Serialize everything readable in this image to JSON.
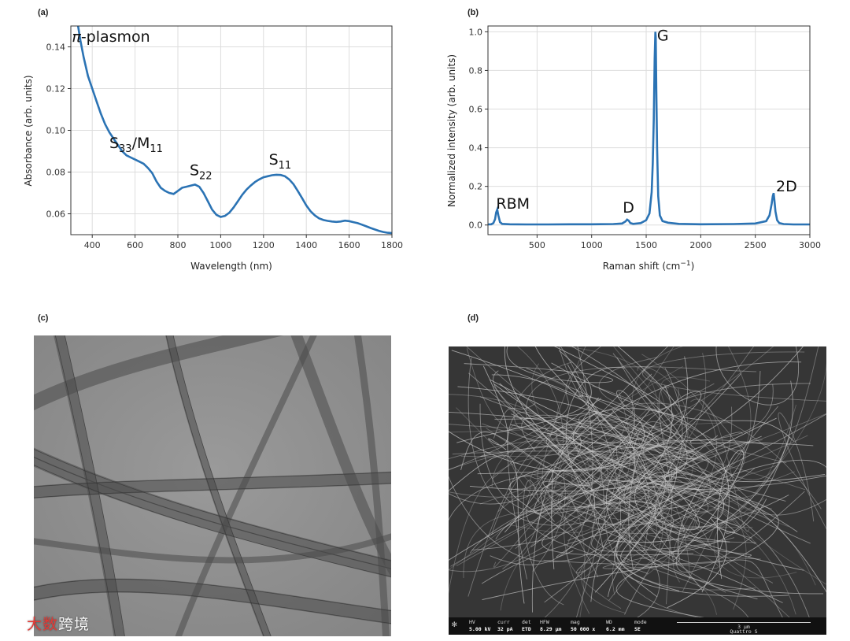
{
  "chart_data": [
    {
      "panel": "(a)",
      "type": "line",
      "xlabel": "Wavelength (nm)",
      "ylabel": "Absorbance (arb. units)",
      "xlim": [
        300,
        1800
      ],
      "ylim": [
        0.05,
        0.15
      ],
      "xticks": [
        400,
        600,
        800,
        1000,
        1200,
        1400,
        1600,
        1800
      ],
      "yticks": [
        0.06,
        0.08,
        0.1,
        0.12,
        0.14
      ],
      "grid": true,
      "color": "#2b73b4",
      "series": [
        {
          "x": [
            334,
            345,
            360,
            380,
            400,
            420,
            440,
            460,
            480,
            500,
            520,
            540,
            560,
            580,
            600,
            620,
            640,
            660,
            680,
            700,
            720,
            740,
            760,
            780,
            800,
            820,
            840,
            860,
            880,
            900,
            920,
            940,
            960,
            980,
            1000,
            1020,
            1040,
            1060,
            1080,
            1100,
            1120,
            1140,
            1160,
            1180,
            1200,
            1220,
            1240,
            1260,
            1280,
            1300,
            1320,
            1340,
            1360,
            1380,
            1400,
            1420,
            1440,
            1460,
            1480,
            1500,
            1520,
            1540,
            1560,
            1580,
            1600,
            1620,
            1640,
            1660,
            1680,
            1700,
            1720,
            1740,
            1760,
            1780,
            1800
          ],
          "y": [
            0.15,
            0.143,
            0.135,
            0.126,
            0.12,
            0.114,
            0.108,
            0.103,
            0.099,
            0.096,
            0.093,
            0.09,
            0.088,
            0.087,
            0.086,
            0.085,
            0.084,
            0.082,
            0.0795,
            0.0755,
            0.0725,
            0.071,
            0.07,
            0.0695,
            0.071,
            0.0725,
            0.073,
            0.0735,
            0.074,
            0.073,
            0.07,
            0.066,
            0.062,
            0.0595,
            0.0585,
            0.059,
            0.0605,
            0.063,
            0.066,
            0.069,
            0.0715,
            0.0735,
            0.0752,
            0.0765,
            0.0775,
            0.078,
            0.0785,
            0.0787,
            0.0786,
            0.078,
            0.0765,
            0.0742,
            0.071,
            0.0675,
            0.064,
            0.0612,
            0.0592,
            0.0578,
            0.057,
            0.0566,
            0.0563,
            0.0561,
            0.0563,
            0.0567,
            0.0565,
            0.056,
            0.0555,
            0.0548,
            0.054,
            0.0532,
            0.0525,
            0.0518,
            0.0513,
            0.0509,
            0.0508
          ]
        }
      ],
      "annotations": [
        {
          "prefix": "π",
          "text": "-plasmon",
          "x": 305,
          "y": 0.1425
        },
        {
          "text": "S",
          "sub": "33",
          "text2": "/M",
          "sub2": "11",
          "x": 480,
          "y": 0.0915
        },
        {
          "text": "S",
          "sub": "22",
          "x": 855,
          "y": 0.0785
        },
        {
          "text": "S",
          "sub": "11",
          "x": 1225,
          "y": 0.0835
        }
      ]
    },
    {
      "panel": "(b)",
      "type": "line",
      "xlabel": "Raman shift (cm",
      "xlabel_sup": "−1",
      "xlabel_end": ")",
      "ylabel": "Normalized intensity (arb. units)",
      "xlim": [
        50,
        3000
      ],
      "ylim": [
        -0.05,
        1.03
      ],
      "xticks": [
        500,
        1000,
        1500,
        2000,
        2500,
        3000
      ],
      "yticks": [
        0.0,
        0.2,
        0.4,
        0.6,
        0.8,
        1.0
      ],
      "grid": true,
      "color": "#2b73b4",
      "series": [
        {
          "x": [
            50,
            80,
            100,
            115,
            125,
            135,
            145,
            160,
            180,
            250,
            400,
            600,
            800,
            1000,
            1200,
            1280,
            1310,
            1325,
            1340,
            1355,
            1380,
            1450,
            1500,
            1530,
            1550,
            1560,
            1570,
            1578,
            1584,
            1588,
            1593,
            1600,
            1610,
            1625,
            1650,
            1700,
            1800,
            2000,
            2300,
            2500,
            2600,
            2630,
            2650,
            2660,
            2668,
            2675,
            2685,
            2700,
            2720,
            2760,
            2850,
            3000
          ],
          "y": [
            0.003,
            0.004,
            0.01,
            0.03,
            0.065,
            0.08,
            0.05,
            0.015,
            0.006,
            0.004,
            0.003,
            0.003,
            0.004,
            0.004,
            0.005,
            0.008,
            0.018,
            0.028,
            0.022,
            0.01,
            0.006,
            0.01,
            0.025,
            0.06,
            0.17,
            0.32,
            0.55,
            0.86,
            1.0,
            0.97,
            0.7,
            0.4,
            0.15,
            0.05,
            0.02,
            0.012,
            0.006,
            0.004,
            0.005,
            0.008,
            0.02,
            0.05,
            0.11,
            0.15,
            0.165,
            0.13,
            0.07,
            0.025,
            0.01,
            0.005,
            0.003,
            0.003
          ]
        }
      ],
      "annotations": [
        {
          "text": "G",
          "x": 1600,
          "y": 0.955
        },
        {
          "text": "RBM",
          "x": 125,
          "y": 0.085
        },
        {
          "text": "D",
          "x": 1285,
          "y": 0.065
        },
        {
          "text": "2D",
          "x": 2690,
          "y": 0.175
        }
      ]
    }
  ],
  "panels": {
    "c": {
      "label": "(c)"
    },
    "d": {
      "label": "(d)"
    }
  },
  "sem_info": {
    "hv_label": "HV",
    "hv_value": "5.00 kV",
    "curr_label": "curr",
    "curr_value": "32 pA",
    "det_label": "det",
    "det_value": "ETD",
    "hfw_label": "HFW",
    "hfw_value": "8.29 µm",
    "mag_label": "mag",
    "mag_value": "50 000 x",
    "wd_label": "WD",
    "wd_value": "6.2 mm",
    "mode_label": "mode",
    "mode_value": "SE",
    "scale": "3 µm",
    "instrument": "Quattro S"
  },
  "watermark": {
    "red": "大数",
    "white": "跨境"
  },
  "colors": {
    "line": "#2b73b4",
    "grid": "#dddddd"
  }
}
